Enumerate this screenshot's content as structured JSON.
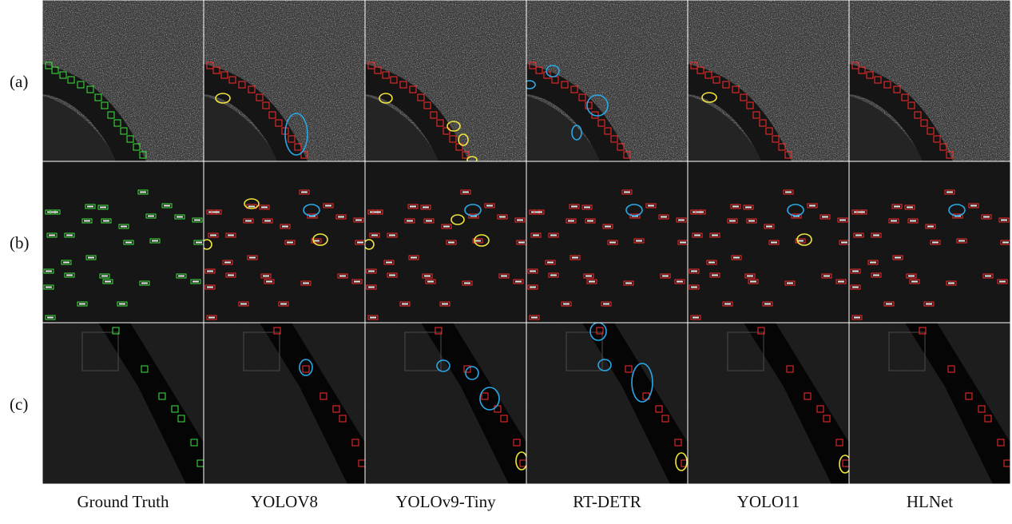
{
  "rows": [
    {
      "label": "(a)"
    },
    {
      "label": "(b)"
    },
    {
      "label": "(c)"
    }
  ],
  "columns": [
    {
      "label": "Ground Truth"
    },
    {
      "label": "YOLOV8"
    },
    {
      "label": "YOLOv9-Tiny"
    },
    {
      "label": "RT-DETR"
    },
    {
      "label": "YOLO11"
    },
    {
      "label": "HLNet"
    }
  ],
  "colors": {
    "ground_truth_box": "#3ee63e",
    "prediction_box": "#ff2a2a",
    "false_alarm_marker": "#2aa8e8",
    "missed_detection_marker": "#f2e63a",
    "panel_divider": "#ffffff"
  }
}
